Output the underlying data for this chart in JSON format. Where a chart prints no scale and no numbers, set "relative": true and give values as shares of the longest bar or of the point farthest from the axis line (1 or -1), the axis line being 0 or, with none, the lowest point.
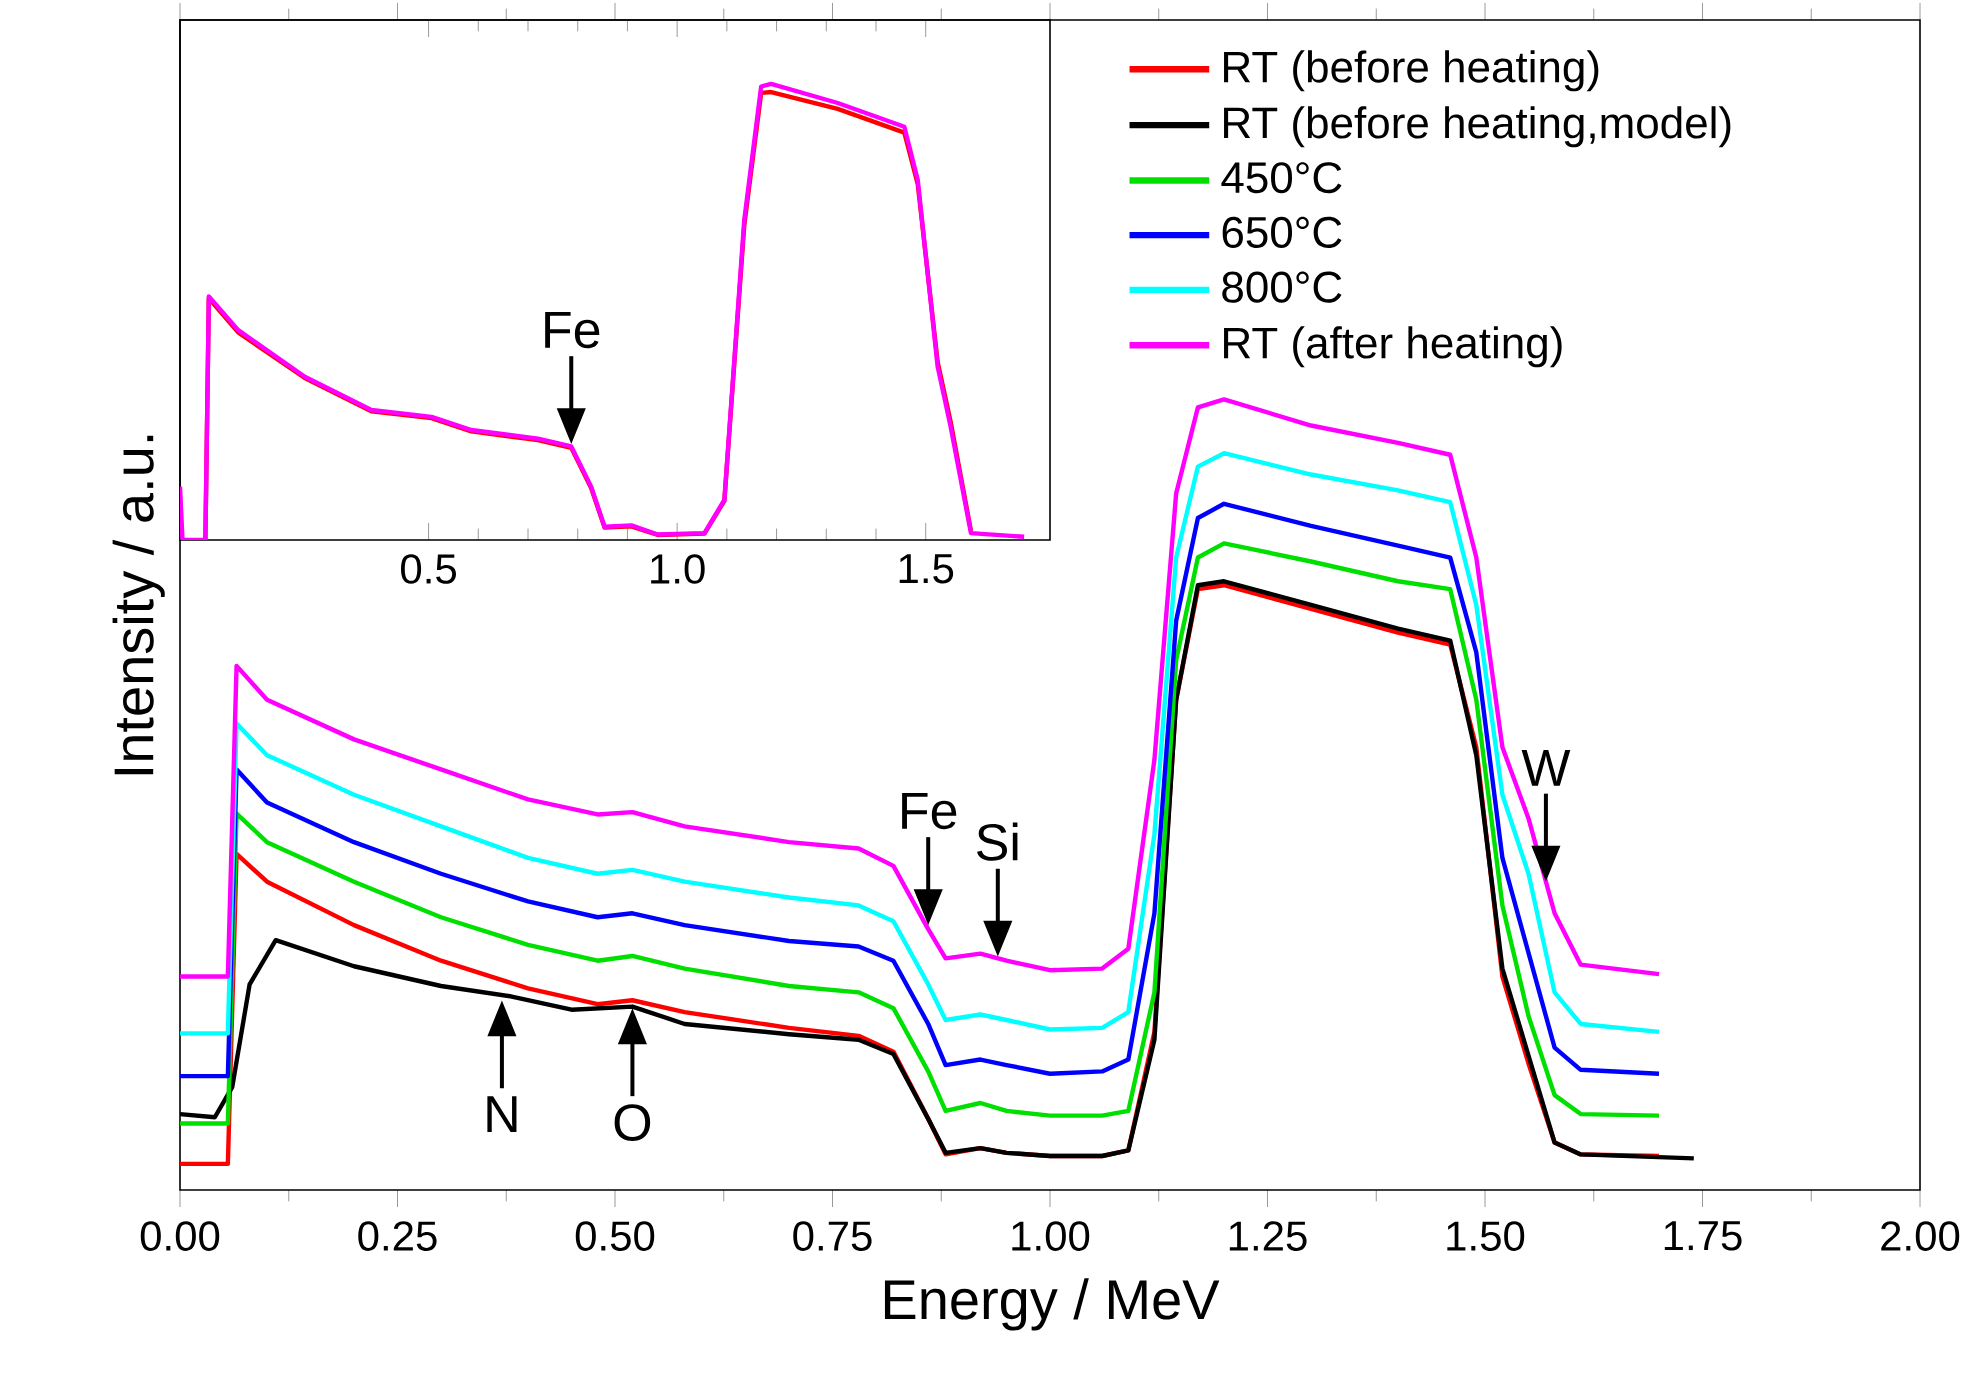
{
  "chart_data": [
    {
      "type": "line",
      "xlabel": "Energy / MeV",
      "ylabel": "Intensity / a.u.",
      "relative": true,
      "xlim": [
        0,
        2
      ],
      "xticks": [
        {
          "value": 0,
          "label": "0.00"
        },
        {
          "value": 0.25,
          "label": "0.25"
        },
        {
          "value": 0.5,
          "label": "0.50"
        },
        {
          "value": 0.75,
          "label": "0.75"
        },
        {
          "value": 1,
          "label": "1.00"
        },
        {
          "value": 1.25,
          "label": "1.25"
        },
        {
          "value": 1.5,
          "label": "1.50"
        },
        {
          "value": 1.75,
          "label": "1.75"
        },
        {
          "value": 2,
          "label": "2.00"
        }
      ],
      "legend": "top right",
      "x": [
        0,
        0.05,
        0.055,
        0.065,
        0.1,
        0.2,
        0.3,
        0.4,
        0.48,
        0.52,
        0.58,
        0.7,
        0.78,
        0.82,
        0.86,
        0.88,
        0.92,
        0.95,
        1.0,
        1.06,
        1.09,
        1.12,
        1.145,
        1.17,
        1.2,
        1.3,
        1.4,
        1.46,
        1.49,
        1.52,
        1.55,
        1.58,
        1.61,
        1.7
      ],
      "series": [
        {
          "name": "RT (before heating)",
          "color": "#ff0000",
          "values": [
            0.033,
            0.033,
            0.033,
            0.425,
            0.39,
            0.335,
            0.29,
            0.255,
            0.235,
            0.24,
            0.225,
            0.205,
            0.195,
            0.175,
            0.09,
            0.045,
            0.053,
            0.047,
            0.043,
            0.043,
            0.05,
            0.2,
            0.62,
            0.76,
            0.765,
            0.735,
            0.705,
            0.69,
            0.56,
            0.27,
            0.16,
            0.06,
            0.045,
            0.043
          ]
        },
        {
          "name": "RT (before heating,model)",
          "color": "#000000",
          "x": [
            0,
            0.04,
            0.06,
            0.08,
            0.11,
            0.2,
            0.3,
            0.38,
            0.45,
            0.52,
            0.58,
            0.7,
            0.78,
            0.82,
            0.86,
            0.88,
            0.92,
            0.95,
            1.0,
            1.06,
            1.09,
            1.12,
            1.145,
            1.17,
            1.2,
            1.3,
            1.4,
            1.46,
            1.49,
            1.52,
            1.55,
            1.58,
            1.61,
            1.74
          ],
          "values": [
            0.096,
            0.092,
            0.13,
            0.26,
            0.316,
            0.283,
            0.258,
            0.245,
            0.228,
            0.232,
            0.21,
            0.197,
            0.19,
            0.172,
            0.09,
            0.047,
            0.053,
            0.047,
            0.043,
            0.043,
            0.05,
            0.19,
            0.62,
            0.765,
            0.77,
            0.74,
            0.71,
            0.695,
            0.55,
            0.28,
            0.17,
            0.06,
            0.045,
            0.04
          ]
        },
        {
          "name": "450°C",
          "color": "#00e000",
          "values": [
            0.084,
            0.084,
            0.084,
            0.476,
            0.44,
            0.39,
            0.345,
            0.31,
            0.29,
            0.296,
            0.28,
            0.258,
            0.25,
            0.23,
            0.15,
            0.1,
            0.11,
            0.1,
            0.094,
            0.094,
            0.1,
            0.25,
            0.67,
            0.8,
            0.818,
            0.795,
            0.77,
            0.76,
            0.62,
            0.36,
            0.22,
            0.12,
            0.096,
            0.094
          ]
        },
        {
          "name": "650°C",
          "color": "#0000ff",
          "values": [
            0.144,
            0.144,
            0.144,
            0.532,
            0.49,
            0.44,
            0.4,
            0.365,
            0.345,
            0.35,
            0.335,
            0.315,
            0.308,
            0.29,
            0.21,
            0.158,
            0.165,
            0.158,
            0.147,
            0.15,
            0.165,
            0.35,
            0.72,
            0.85,
            0.868,
            0.84,
            0.815,
            0.8,
            0.68,
            0.42,
            0.3,
            0.18,
            0.152,
            0.147
          ]
        },
        {
          "name": "800°C",
          "color": "#00ffff",
          "values": [
            0.198,
            0.198,
            0.198,
            0.59,
            0.55,
            0.5,
            0.46,
            0.42,
            0.4,
            0.405,
            0.39,
            0.37,
            0.36,
            0.34,
            0.26,
            0.215,
            0.222,
            0.215,
            0.203,
            0.205,
            0.225,
            0.45,
            0.8,
            0.915,
            0.932,
            0.905,
            0.885,
            0.87,
            0.74,
            0.5,
            0.4,
            0.25,
            0.21,
            0.2
          ]
        },
        {
          "name": "RT (after heating)",
          "color": "#ff00ff",
          "values": [
            0.27,
            0.27,
            0.27,
            0.663,
            0.62,
            0.57,
            0.532,
            0.494,
            0.475,
            0.478,
            0.46,
            0.44,
            0.432,
            0.41,
            0.33,
            0.293,
            0.299,
            0.29,
            0.278,
            0.28,
            0.305,
            0.544,
            0.881,
            0.99,
            1.0,
            0.967,
            0.945,
            0.93,
            0.8,
            0.56,
            0.47,
            0.35,
            0.285,
            0.273
          ]
        }
      ],
      "annotations": [
        {
          "text": "N",
          "x": 0.37,
          "y": 0.24
        },
        {
          "text": "O",
          "x": 0.52,
          "y": 0.23
        },
        {
          "text": "Fe",
          "x": 0.86,
          "y": 0.335
        },
        {
          "text": "Si",
          "x": 0.94,
          "y": 0.295
        },
        {
          "text": "W",
          "x": 1.57,
          "y": 0.39
        }
      ]
    },
    {
      "type": "line",
      "relative": true,
      "xlim": [
        0,
        1.75
      ],
      "xticks": [
        {
          "value": 0.5,
          "label": "0.5"
        },
        {
          "value": 1,
          "label": "1.0"
        },
        {
          "value": 1.5,
          "label": "1.5"
        }
      ],
      "x": [
        0,
        0.005,
        0.051,
        0.058,
        0.117,
        0.251,
        0.385,
        0.506,
        0.586,
        0.72,
        0.787,
        0.827,
        0.854,
        0.908,
        0.961,
        1.055,
        1.095,
        1.135,
        1.169,
        1.189,
        1.323,
        1.457,
        1.484,
        1.524,
        1.55,
        1.591,
        1.698
      ],
      "series": [
        {
          "color": "#ff0000",
          "values": [
            null,
            null,
            0,
            0.53,
            0.455,
            0.355,
            0.282,
            0.267,
            0.238,
            0.219,
            0.202,
            0.114,
            0.027,
            0.03,
            0.011,
            0.014,
            0.086,
            0.69,
            0.98,
            0.982,
            0.945,
            0.893,
            0.78,
            0.39,
            0.26,
            0.02,
            null
          ]
        },
        {
          "color": "#ff00ff",
          "values": [
            0.117,
            0,
            0,
            0.534,
            0.46,
            0.358,
            0.285,
            0.27,
            0.241,
            0.222,
            0.205,
            0.117,
            0.029,
            0.032,
            0.012,
            0.015,
            0.088,
            0.702,
            0.994,
            1.0,
            0.958,
            0.906,
            0.789,
            0.38,
            0.249,
            0.015,
            0.007
          ]
        }
      ],
      "annotations": [
        {
          "text": "Fe",
          "x": 0.787,
          "y": 0.21
        }
      ]
    }
  ]
}
